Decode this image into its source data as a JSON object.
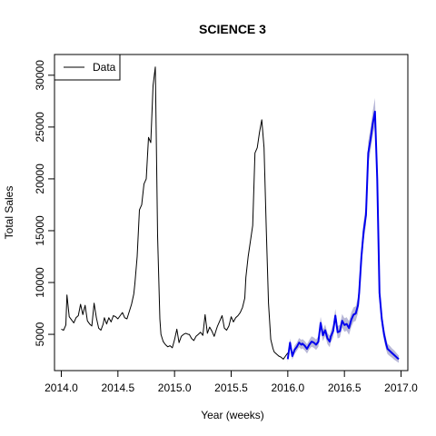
{
  "chart_data": {
    "type": "line",
    "title": "SCIENCE 3",
    "xlabel": "Year (weeks)",
    "ylabel": "Total Sales",
    "xlim": [
      2013.94,
      2017.06
    ],
    "ylim": [
      1500,
      32000
    ],
    "x_ticks": [
      2014.0,
      2014.5,
      2015.0,
      2015.5,
      2016.0,
      2016.5,
      2017.0
    ],
    "x_tick_labels": [
      "2014.0",
      "2014.5",
      "2015.0",
      "2015.5",
      "2016.0",
      "2016.5",
      "2017.0"
    ],
    "y_ticks": [
      5000,
      10000,
      15000,
      20000,
      25000,
      30000
    ],
    "y_tick_labels": [
      "5000",
      "10000",
      "15000",
      "20000",
      "25000",
      "30000"
    ],
    "grid": false,
    "legend": {
      "position": "top-left",
      "entries": [
        "Data"
      ]
    },
    "colors": {
      "data": "#000000",
      "forecast": "#0000ee",
      "band": "#b8b8d8"
    },
    "series": [
      {
        "name": "Data",
        "x": [
          2014.0,
          2014.02,
          2014.04,
          2014.05,
          2014.07,
          2014.09,
          2014.11,
          2014.13,
          2014.15,
          2014.17,
          2014.19,
          2014.21,
          2014.23,
          2014.25,
          2014.27,
          2014.29,
          2014.31,
          2014.33,
          2014.35,
          2014.37,
          2014.38,
          2014.4,
          2014.42,
          2014.44,
          2014.46,
          2014.48,
          2014.5,
          2014.52,
          2014.54,
          2014.56,
          2014.58,
          2014.6,
          2014.62,
          2014.64,
          2014.65,
          2014.67,
          2014.69,
          2014.71,
          2014.73,
          2014.75,
          2014.77,
          2014.79,
          2014.81,
          2014.83,
          2014.85,
          2014.87,
          2014.88,
          2014.9,
          2014.92,
          2014.94,
          2014.96,
          2014.98,
          2015.0,
          2015.02,
          2015.04,
          2015.06,
          2015.08,
          2015.1,
          2015.12,
          2015.13,
          2015.15,
          2015.17,
          2015.19,
          2015.21,
          2015.23,
          2015.25,
          2015.27,
          2015.29,
          2015.31,
          2015.33,
          2015.35,
          2015.37,
          2015.38,
          2015.4,
          2015.42,
          2015.44,
          2015.46,
          2015.48,
          2015.5,
          2015.52,
          2015.54,
          2015.56,
          2015.58,
          2015.6,
          2015.62,
          2015.63,
          2015.65,
          2015.67,
          2015.69,
          2015.71,
          2015.73,
          2015.75,
          2015.77,
          2015.79,
          2015.81,
          2015.83,
          2015.85,
          2015.87,
          2015.88,
          2015.9,
          2015.92,
          2015.94,
          2015.96,
          2015.98,
          2016.0
        ],
        "y": [
          5500,
          5400,
          5900,
          8800,
          6700,
          6400,
          6100,
          6600,
          6800,
          7900,
          6900,
          7800,
          6300,
          6000,
          5800,
          8000,
          6600,
          5600,
          5400,
          6000,
          6600,
          6000,
          6600,
          6200,
          6800,
          6700,
          6500,
          6800,
          7100,
          6600,
          6500,
          7200,
          7900,
          8900,
          9900,
          12500,
          17000,
          17500,
          19500,
          20000,
          24000,
          23500,
          29000,
          30800,
          14500,
          6500,
          5000,
          4300,
          4000,
          3800,
          3900,
          3700,
          4500,
          5500,
          4200,
          4800,
          5000,
          5100,
          5000,
          5000,
          4600,
          4400,
          4800,
          5000,
          5200,
          4900,
          6900,
          5100,
          5700,
          5300,
          4800,
          5500,
          5800,
          6300,
          6800,
          5600,
          5400,
          5800,
          6700,
          6200,
          6600,
          6800,
          7100,
          7600,
          8500,
          10500,
          12500,
          14000,
          15500,
          22500,
          23000,
          24500,
          25700,
          23000,
          15000,
          8000,
          4500,
          3600,
          3300,
          3100,
          2900,
          2800,
          2600,
          2900,
          3200
        ]
      },
      {
        "x": [
          2016.0,
          2016.02,
          2016.04,
          2016.06,
          2016.08,
          2016.1,
          2016.12,
          2016.13,
          2016.15,
          2016.17,
          2016.19,
          2016.21,
          2016.23,
          2016.25,
          2016.27,
          2016.29,
          2016.31,
          2016.33,
          2016.35,
          2016.37,
          2016.38,
          2016.4,
          2016.42,
          2016.44,
          2016.46,
          2016.48,
          2016.5,
          2016.52,
          2016.54,
          2016.56,
          2016.58,
          2016.6,
          2016.62,
          2016.63,
          2016.65,
          2016.67,
          2016.69,
          2016.71,
          2016.73,
          2016.75,
          2016.77,
          2016.79,
          2016.81,
          2016.83,
          2016.85,
          2016.87,
          2016.88,
          2016.9,
          2016.92,
          2016.94,
          2016.96,
          2016.98
        ],
        "y": [
          2600,
          4200,
          2900,
          3500,
          3800,
          4200,
          4000,
          4100,
          3900,
          3600,
          4000,
          4300,
          4200,
          4000,
          4300,
          6100,
          4900,
          5400,
          4600,
          4300,
          4800,
          5300,
          6800,
          5200,
          5300,
          6300,
          5900,
          6000,
          5600,
          6400,
          6900,
          7000,
          7800,
          9000,
          12500,
          15000,
          16500,
          22500,
          23800,
          25300,
          26500,
          20000,
          9000,
          6500,
          5000,
          4000,
          3600,
          3400,
          3200,
          3000,
          2800,
          2600
        ],
        "band_halfwidth": [
          300,
          400,
          350,
          400,
          400,
          450,
          450,
          450,
          450,
          450,
          450,
          500,
          500,
          500,
          500,
          600,
          550,
          550,
          550,
          550,
          550,
          600,
          650,
          600,
          600,
          650,
          650,
          650,
          650,
          700,
          700,
          700,
          750,
          800,
          900,
          950,
          1000,
          1100,
          1100,
          1200,
          1300,
          1100,
          800,
          700,
          600,
          550,
          500,
          500,
          450,
          450,
          400,
          350
        ]
      }
    ]
  }
}
